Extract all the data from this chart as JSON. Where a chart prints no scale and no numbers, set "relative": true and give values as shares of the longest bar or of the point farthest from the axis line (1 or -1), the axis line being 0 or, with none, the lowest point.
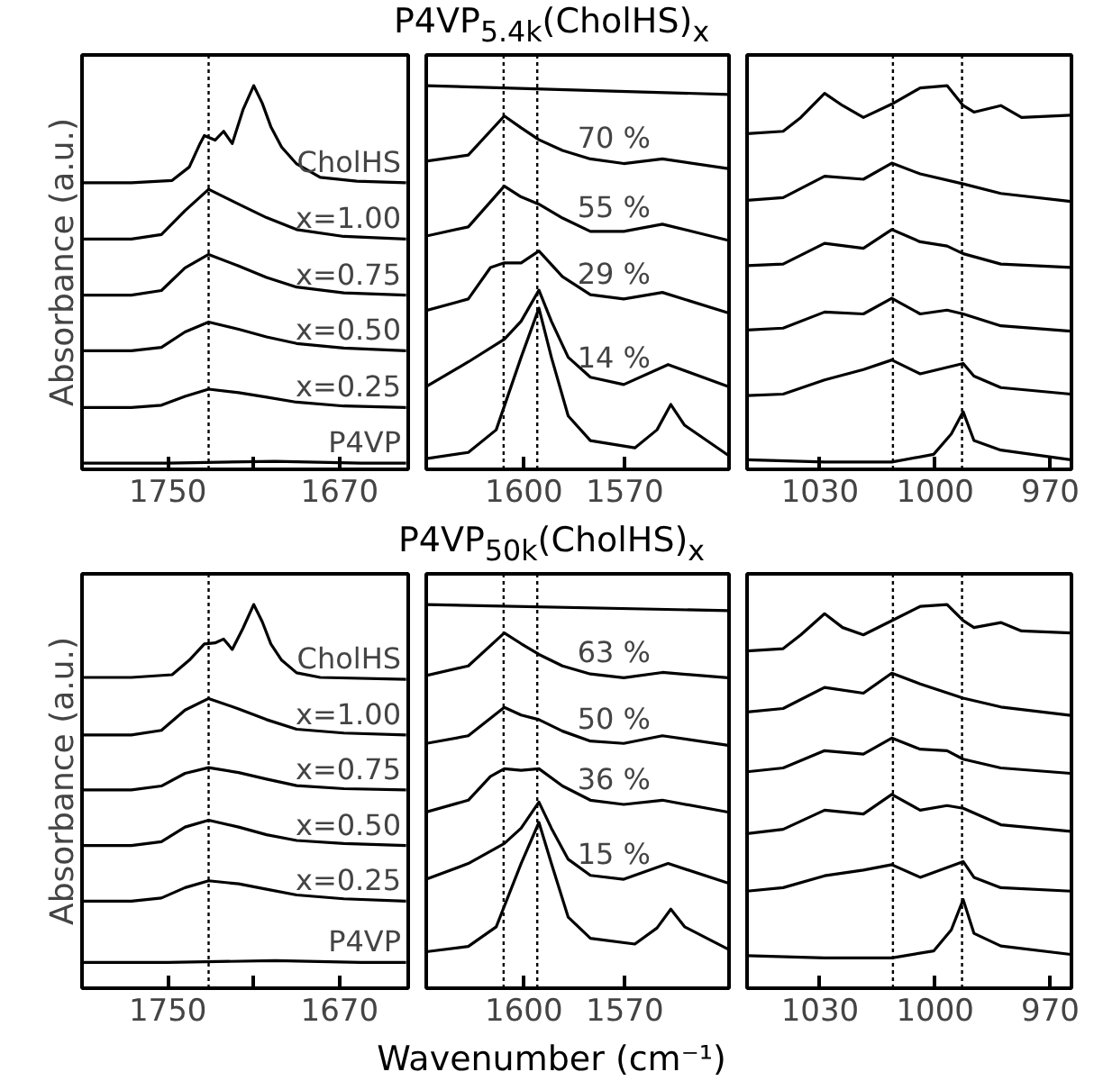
{
  "chart_data": [
    {
      "type": "line",
      "relative": true,
      "ylabel": "Absorbance (a.u.)",
      "xlim": [
        1790,
        1638
      ],
      "xticks": [
        1750,
        {
          "value": 1710,
          "label": null
        },
        1670
      ],
      "tick_labels": "x",
      "ref_lines": [
        {
          "axis": "x",
          "value": 1731,
          "line_style": "dotted",
          "color": "#000000"
        }
      ],
      "series": [
        {
          "name": "CholHS",
          "color": "#000000",
          "x": [
            1790,
            1767,
            1748,
            1740,
            1735,
            1733,
            1728,
            1724,
            1720,
            1715,
            1710,
            1706,
            1702,
            1697,
            1690,
            1679,
            1662,
            1639
          ],
          "values": [
            0.747,
            0.747,
            0.753,
            0.788,
            0.849,
            0.87,
            0.858,
            0.881,
            0.849,
            0.937,
            1.0,
            0.954,
            0.893,
            0.84,
            0.796,
            0.761,
            0.751,
            0.747
          ]
        },
        {
          "name": "x=1.00",
          "color": "#000000",
          "x": [
            1790,
            1767,
            1753,
            1742,
            1731,
            1717,
            1704,
            1690,
            1668,
            1639
          ],
          "values": [
            0.6,
            0.6,
            0.612,
            0.674,
            0.73,
            0.691,
            0.656,
            0.625,
            0.607,
            0.6
          ]
        },
        {
          "name": "x=0.75",
          "color": "#000000",
          "x": [
            1790,
            1767,
            1753,
            1742,
            1731,
            1717,
            1704,
            1690,
            1668,
            1639
          ],
          "values": [
            0.454,
            0.454,
            0.466,
            0.525,
            0.56,
            0.53,
            0.5,
            0.475,
            0.46,
            0.454
          ]
        },
        {
          "name": "x=0.50",
          "color": "#000000",
          "x": [
            1790,
            1767,
            1753,
            1742,
            1731,
            1717,
            1704,
            1690,
            1668,
            1639
          ],
          "values": [
            0.309,
            0.309,
            0.318,
            0.358,
            0.384,
            0.365,
            0.345,
            0.328,
            0.316,
            0.309
          ]
        },
        {
          "name": "x=0.25",
          "color": "#000000",
          "x": [
            1790,
            1767,
            1753,
            1742,
            1731,
            1717,
            1704,
            1690,
            1668,
            1639
          ],
          "values": [
            0.161,
            0.161,
            0.167,
            0.19,
            0.209,
            0.2,
            0.188,
            0.175,
            0.165,
            0.161
          ]
        },
        {
          "name": "P4VP",
          "color": "#000000",
          "x": [
            1790,
            1750,
            1700,
            1660,
            1639
          ],
          "values": [
            0.016,
            0.016,
            0.021,
            0.016,
            0.016
          ]
        }
      ]
    },
    {
      "type": "line",
      "relative": true,
      "title": "P4VP$_{5.4k}$(CholHS)$_{x}$",
      "xlim": [
        1629,
        1539
      ],
      "xticks": [
        1600,
        1570
      ],
      "tick_labels": "x",
      "ref_lines": [
        {
          "axis": "x",
          "value": 1606,
          "line_style": "dotted",
          "color": "#000000"
        },
        {
          "axis": "x",
          "value": 1596,
          "line_style": "dotted",
          "color": "#000000"
        }
      ],
      "annotations": [
        "70 %",
        "55 %",
        "29 %",
        "14 %"
      ],
      "series": [
        {
          "color": "#000000",
          "x": [
            1629,
            1539
          ],
          "values": [
            1.0,
            0.977
          ]
        },
        {
          "color": "#000000",
          "x": [
            1629,
            1616.5,
            1605.8,
            1600.8,
            1595.5,
            1588.5,
            1580.2,
            1570.3,
            1558.8,
            1539.3
          ],
          "values": [
            0.803,
            0.819,
            0.921,
            0.89,
            0.859,
            0.831,
            0.809,
            0.797,
            0.809,
            0.784
          ]
        },
        {
          "color": "#000000",
          "x": [
            1629,
            1616.5,
            1605.8,
            1600.8,
            1595.5,
            1588.5,
            1580.2,
            1570.3,
            1558.8,
            1539.3
          ],
          "values": [
            0.608,
            0.632,
            0.738,
            0.71,
            0.691,
            0.655,
            0.62,
            0.62,
            0.639,
            0.597
          ]
        },
        {
          "color": "#000000",
          "x": [
            1629,
            1616.5,
            1609.9,
            1605.8,
            1600.8,
            1595.5,
            1588.5,
            1580.2,
            1570.3,
            1558.8,
            1539.3
          ],
          "values": [
            0.414,
            0.444,
            0.526,
            0.538,
            0.538,
            0.569,
            0.502,
            0.455,
            0.444,
            0.461,
            0.408
          ]
        },
        {
          "color": "#000000",
          "x": [
            1629,
            1616.5,
            1605.8,
            1600.8,
            1595.5,
            1591.8,
            1586.8,
            1580.2,
            1570.3,
            1557.1,
            1539.3
          ],
          "values": [
            0.216,
            0.28,
            0.339,
            0.386,
            0.467,
            0.386,
            0.292,
            0.24,
            0.221,
            0.273,
            0.216
          ]
        },
        {
          "color": "#000000",
          "x": [
            1629,
            1616.5,
            1608.2,
            1600.8,
            1595.5,
            1591.8,
            1586.8,
            1580.2,
            1567,
            1560.4,
            1556.3,
            1552.2,
            1539.3
          ],
          "values": [
            0.028,
            0.044,
            0.103,
            0.292,
            0.42,
            0.292,
            0.139,
            0.075,
            0.056,
            0.103,
            0.169,
            0.115,
            0.037
          ]
        }
      ]
    },
    {
      "type": "line",
      "relative": true,
      "xlim": [
        1049,
        964.5
      ],
      "xticks": [
        1030,
        1000,
        970
      ],
      "tick_labels": "x",
      "ref_lines": [
        {
          "axis": "x",
          "value": 1011,
          "line_style": "dotted",
          "color": "#000000"
        },
        {
          "axis": "x",
          "value": 993,
          "line_style": "dotted",
          "color": "#000000"
        }
      ],
      "series": [
        {
          "color": "#000000",
          "x": [
            1049,
            1039.6,
            1035,
            1028.8,
            1024.1,
            1018.7,
            1011.3,
            1003.9,
            996.9,
            992.7,
            989.9,
            982.9,
            977.5,
            964.7
          ],
          "values": [
            0.875,
            0.881,
            0.917,
            0.98,
            0.948,
            0.917,
            0.952,
            0.994,
            1.0,
            0.948,
            0.931,
            0.948,
            0.917,
            0.923
          ]
        },
        {
          "color": "#000000",
          "x": [
            1049,
            1039.6,
            1028.8,
            1018.7,
            1011.3,
            1003.9,
            992.7,
            982.9,
            964.7
          ],
          "values": [
            0.701,
            0.708,
            0.764,
            0.756,
            0.798,
            0.77,
            0.744,
            0.719,
            0.698
          ]
        },
        {
          "color": "#000000",
          "x": [
            1049,
            1039.6,
            1028.8,
            1018.7,
            1011.3,
            1003.9,
            996.9,
            992.7,
            982.9,
            964.7
          ],
          "values": [
            0.531,
            0.535,
            0.589,
            0.576,
            0.625,
            0.593,
            0.582,
            0.562,
            0.535,
            0.526
          ]
        },
        {
          "color": "#000000",
          "x": [
            1049,
            1039.6,
            1028.8,
            1018.7,
            1011.3,
            1003.9,
            996.9,
            992.7,
            982.9,
            964.7
          ],
          "values": [
            0.363,
            0.368,
            0.41,
            0.405,
            0.446,
            0.405,
            0.415,
            0.405,
            0.374,
            0.36
          ]
        },
        {
          "color": "#000000",
          "x": [
            1049,
            1039.6,
            1028.8,
            1018.7,
            1011.3,
            1003.9,
            992.7,
            989.9,
            982.9,
            964.7
          ],
          "values": [
            0.192,
            0.196,
            0.233,
            0.26,
            0.285,
            0.249,
            0.276,
            0.243,
            0.213,
            0.196
          ]
        },
        {
          "color": "#000000",
          "x": [
            1049,
            1028.8,
            1011.3,
            1000.4,
            995.8,
            992.7,
            989.9,
            982.9,
            964.7
          ],
          "values": [
            0.025,
            0.019,
            0.019,
            0.039,
            0.092,
            0.15,
            0.075,
            0.05,
            0.025
          ]
        }
      ]
    },
    {
      "type": "line",
      "relative": true,
      "ylabel": "Absorbance (a.u.)",
      "xlim": [
        1790,
        1638
      ],
      "xticks": [
        1750,
        {
          "value": 1710,
          "label": null
        },
        1670
      ],
      "tick_labels": "x",
      "ref_lines": [
        {
          "axis": "x",
          "value": 1731,
          "line_style": "dotted",
          "color": "#000000"
        }
      ],
      "series": [
        {
          "name": "CholHS",
          "color": "#000000",
          "x": [
            1790,
            1767,
            1748,
            1740,
            1733,
            1728,
            1724,
            1720,
            1715,
            1710,
            1706,
            1702,
            1697,
            1690,
            1679,
            1639
          ],
          "values": [
            0.81,
            0.81,
            0.817,
            0.855,
            0.897,
            0.9,
            0.91,
            0.883,
            0.938,
            1.0,
            0.955,
            0.897,
            0.855,
            0.822,
            0.81,
            0.805
          ]
        },
        {
          "name": "x=1.00",
          "color": "#000000",
          "x": [
            1790,
            1767,
            1753,
            1742,
            1731,
            1717,
            1704,
            1690,
            1668,
            1639
          ],
          "values": [
            0.66,
            0.66,
            0.672,
            0.725,
            0.755,
            0.728,
            0.7,
            0.675,
            0.665,
            0.66
          ]
        },
        {
          "name": "x=0.75",
          "color": "#000000",
          "x": [
            1790,
            1767,
            1753,
            1742,
            1731,
            1717,
            1704,
            1690,
            1668,
            1639
          ],
          "values": [
            0.517,
            0.517,
            0.527,
            0.56,
            0.575,
            0.562,
            0.545,
            0.528,
            0.52,
            0.517
          ]
        },
        {
          "name": "x=0.50",
          "color": "#000000",
          "x": [
            1790,
            1767,
            1753,
            1742,
            1731,
            1717,
            1704,
            1690,
            1668,
            1639
          ],
          "values": [
            0.372,
            0.372,
            0.382,
            0.42,
            0.438,
            0.42,
            0.4,
            0.385,
            0.377,
            0.372
          ]
        },
        {
          "name": "x=0.25",
          "color": "#000000",
          "x": [
            1790,
            1767,
            1753,
            1742,
            1731,
            1717,
            1704,
            1690,
            1668,
            1639
          ],
          "values": [
            0.227,
            0.227,
            0.235,
            0.262,
            0.28,
            0.272,
            0.258,
            0.243,
            0.233,
            0.227
          ]
        },
        {
          "name": "P4VP",
          "color": "#000000",
          "x": [
            1790,
            1750,
            1700,
            1660,
            1639
          ],
          "values": [
            0.067,
            0.067,
            0.072,
            0.067,
            0.067
          ]
        }
      ]
    },
    {
      "type": "line",
      "relative": true,
      "title": "P4VP$_{50k}$(CholHS)$_{x}$",
      "xlabel": "Wavenumber (cm⁻¹)",
      "xlim": [
        1629,
        1539
      ],
      "xticks": [
        1600,
        1570
      ],
      "tick_labels": "x",
      "ref_lines": [
        {
          "axis": "x",
          "value": 1606,
          "line_style": "dotted",
          "color": "#000000"
        },
        {
          "axis": "x",
          "value": 1596,
          "line_style": "dotted",
          "color": "#000000"
        }
      ],
      "annotations": [
        "63 %",
        "50 %",
        "36 %",
        "15 %"
      ],
      "series": [
        {
          "color": "#000000",
          "x": [
            1629,
            1539
          ],
          "values": [
            1.0,
            0.984
          ]
        },
        {
          "color": "#000000",
          "x": [
            1629,
            1616.5,
            1605.8,
            1600.8,
            1595.5,
            1588.5,
            1580.2,
            1570.3,
            1558.8,
            1539.3
          ],
          "values": [
            0.815,
            0.84,
            0.926,
            0.898,
            0.87,
            0.84,
            0.819,
            0.809,
            0.823,
            0.809
          ]
        },
        {
          "color": "#000000",
          "x": [
            1629,
            1616.5,
            1605.8,
            1600.8,
            1595.5,
            1588.5,
            1580.2,
            1570.3,
            1558.8,
            1539.3
          ],
          "values": [
            0.638,
            0.658,
            0.732,
            0.712,
            0.7,
            0.67,
            0.644,
            0.638,
            0.658,
            0.633
          ]
        },
        {
          "color": "#000000",
          "x": [
            1629,
            1616.5,
            1609.9,
            1605.8,
            1600.8,
            1595.5,
            1588.5,
            1580.2,
            1570.3,
            1558.8,
            1539.3
          ],
          "values": [
            0.459,
            0.49,
            0.552,
            0.572,
            0.568,
            0.572,
            0.527,
            0.49,
            0.479,
            0.49,
            0.459
          ]
        },
        {
          "color": "#000000",
          "x": [
            1629,
            1616.5,
            1605.8,
            1600.8,
            1595.5,
            1591.8,
            1586.8,
            1580.2,
            1570.3,
            1557.1,
            1539.3
          ],
          "values": [
            0.284,
            0.325,
            0.377,
            0.417,
            0.485,
            0.417,
            0.336,
            0.294,
            0.284,
            0.325,
            0.274
          ]
        },
        {
          "color": "#000000",
          "x": [
            1629,
            1616.5,
            1608.2,
            1600.8,
            1595.5,
            1591.8,
            1586.8,
            1580.2,
            1567,
            1560.4,
            1556.3,
            1552.2,
            1539.3
          ],
          "values": [
            0.095,
            0.109,
            0.16,
            0.325,
            0.432,
            0.325,
            0.185,
            0.13,
            0.115,
            0.157,
            0.206,
            0.16,
            0.102
          ]
        }
      ]
    },
    {
      "type": "line",
      "relative": true,
      "xlim": [
        1049,
        964.5
      ],
      "xticks": [
        1030,
        1000,
        970
      ],
      "tick_labels": "x",
      "ref_lines": [
        {
          "axis": "x",
          "value": 1011,
          "line_style": "dotted",
          "color": "#000000"
        },
        {
          "axis": "x",
          "value": 993,
          "line_style": "dotted",
          "color": "#000000"
        }
      ],
      "series": [
        {
          "color": "#000000",
          "x": [
            1049,
            1039.6,
            1035,
            1028.8,
            1024.1,
            1018.7,
            1011.3,
            1003.9,
            996.9,
            992.7,
            989.9,
            982.9,
            977.5,
            964.7
          ],
          "values": [
            0.879,
            0.885,
            0.921,
            0.976,
            0.94,
            0.921,
            0.958,
            0.995,
            1.0,
            0.958,
            0.94,
            0.953,
            0.931,
            0.926
          ]
        },
        {
          "color": "#000000",
          "x": [
            1049,
            1039.6,
            1028.8,
            1018.7,
            1011.3,
            1003.9,
            992.7,
            982.9,
            964.7
          ],
          "values": [
            0.72,
            0.729,
            0.784,
            0.769,
            0.821,
            0.793,
            0.756,
            0.733,
            0.711
          ]
        },
        {
          "color": "#000000",
          "x": [
            1049,
            1039.6,
            1028.8,
            1018.7,
            1011.3,
            1003.9,
            996.9,
            992.7,
            982.9,
            964.7
          ],
          "values": [
            0.564,
            0.574,
            0.619,
            0.61,
            0.652,
            0.623,
            0.619,
            0.597,
            0.574,
            0.56
          ]
        },
        {
          "color": "#000000",
          "x": [
            1049,
            1039.6,
            1028.8,
            1018.7,
            1011.3,
            1003.9,
            996.9,
            992.7,
            982.9,
            964.7
          ],
          "values": [
            0.403,
            0.414,
            0.464,
            0.454,
            0.505,
            0.464,
            0.476,
            0.469,
            0.426,
            0.409
          ]
        },
        {
          "color": "#000000",
          "x": [
            1049,
            1039.6,
            1028.8,
            1018.7,
            1011.3,
            1003.9,
            992.7,
            989.9,
            982.9,
            964.7
          ],
          "values": [
            0.253,
            0.262,
            0.293,
            0.308,
            0.322,
            0.289,
            0.33,
            0.289,
            0.262,
            0.253
          ]
        },
        {
          "color": "#000000",
          "x": [
            1049,
            1028.8,
            1011.3,
            1000.4,
            995.8,
            992.7,
            989.9,
            982.9,
            964.7
          ],
          "values": [
            0.085,
            0.079,
            0.079,
            0.097,
            0.152,
            0.231,
            0.143,
            0.11,
            0.088
          ]
        }
      ]
    }
  ]
}
